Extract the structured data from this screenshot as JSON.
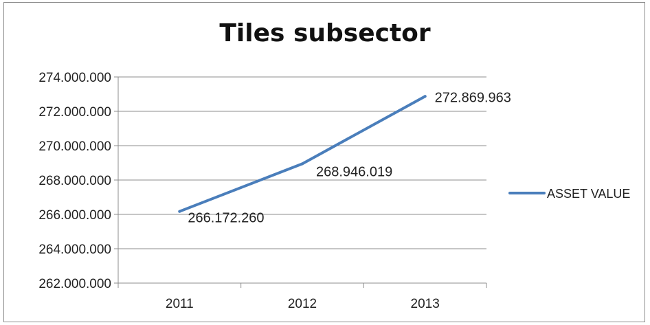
{
  "chart_data": {
    "type": "line",
    "title": "Tiles subsector",
    "xlabel": "",
    "ylabel": "",
    "categories": [
      "2011",
      "2012",
      "2013"
    ],
    "series": [
      {
        "name": "ASSET VALUE",
        "values": [
          266172260,
          268946019,
          272869963
        ],
        "labels": [
          "266.172.260",
          "268.946.019",
          "272.869.963"
        ],
        "color": "#4a7ebb"
      }
    ],
    "ylim": [
      262000000,
      274000000
    ],
    "yticks": [
      262000000,
      264000000,
      266000000,
      268000000,
      270000000,
      272000000,
      274000000
    ],
    "ytick_labels": [
      "262.000.000",
      "264.000.000",
      "266.000.000",
      "268.000.000",
      "270.000.000",
      "272.000.000",
      "274.000.000"
    ],
    "grid": true,
    "legend_position": "right",
    "colors": {
      "grid": "#8c8c8c",
      "axis": "#8c8c8c",
      "line": "#4a7ebb"
    }
  }
}
